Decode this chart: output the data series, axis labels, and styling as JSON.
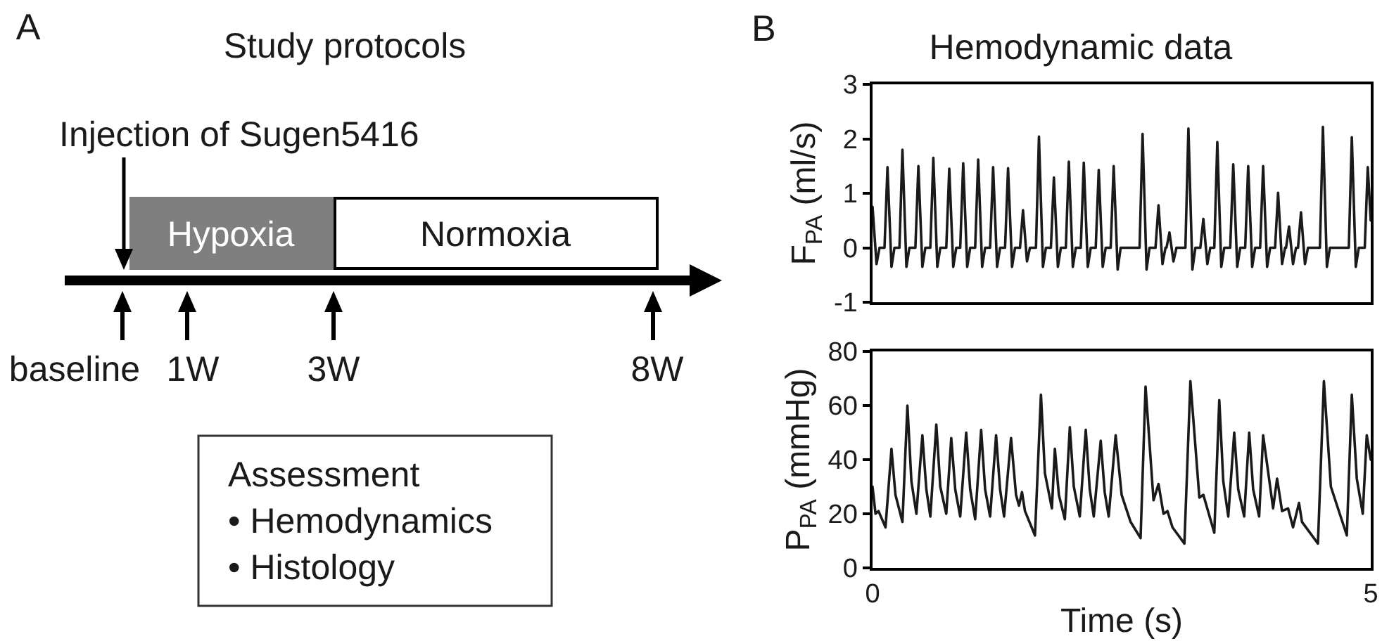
{
  "chart_data": [
    {
      "type": "other",
      "title": "Study protocols",
      "annotations": [
        "A",
        "Injection of Sugen5416",
        "Hypoxia",
        "Normoxia",
        "baseline",
        "1W",
        "3W",
        "8W",
        "Assessment",
        "• Hemodynamics",
        "• Histology"
      ]
    },
    {
      "type": "line",
      "title": "Hemodynamic data",
      "annotations": [
        "B"
      ],
      "ylabel": "F$_{PA}$ (ml/s)",
      "color": "#1a1a1a",
      "xlim": [
        0,
        5
      ],
      "ylim": [
        -1,
        3
      ],
      "yticks": [
        -1,
        0,
        1,
        2,
        3
      ],
      "tick_labels": "y",
      "x": [
        0,
        0.04,
        0.07,
        0.12,
        0.15,
        0.19,
        0.22,
        0.27,
        0.3,
        0.34,
        0.37,
        0.43,
        0.46,
        0.5,
        0.53,
        0.58,
        0.61,
        0.65,
        0.68,
        0.74,
        0.77,
        0.81,
        0.84,
        0.88,
        0.91,
        0.95,
        0.98,
        1.03,
        1.06,
        1.1,
        1.13,
        1.18,
        1.21,
        1.25,
        1.28,
        1.33,
        1.36,
        1.4,
        1.43,
        1.48,
        1.51,
        1.55,
        1.58,
        1.64,
        1.67,
        1.71,
        1.74,
        1.79,
        1.82,
        1.86,
        1.89,
        1.94,
        1.97,
        2.01,
        2.04,
        2.09,
        2.12,
        2.16,
        2.19,
        2.24,
        2.27,
        2.31,
        2.34,
        2.39,
        2.42,
        2.46,
        2.49,
        2.68,
        2.71,
        2.75,
        2.78,
        2.84,
        2.87,
        2.91,
        2.94,
        2.95,
        2.98,
        3.02,
        3.05,
        3.14,
        3.17,
        3.21,
        3.24,
        3.29,
        3.32,
        3.36,
        3.39,
        3.43,
        3.46,
        3.5,
        3.53,
        3.59,
        3.62,
        3.66,
        3.69,
        3.74,
        3.77,
        3.81,
        3.84,
        3.89,
        3.92,
        3.96,
        3.99,
        4.04,
        4.07,
        4.11,
        4.14,
        4.15,
        4.18,
        4.22,
        4.25,
        4.27,
        4.3,
        4.34,
        4.37,
        4.49,
        4.52,
        4.56,
        4.59,
        4.78,
        4.81,
        4.85,
        4.88,
        4.94,
        4.97,
        5
      ],
      "values": [
        0.75,
        -0.3,
        0,
        0,
        1.48,
        -0.35,
        0,
        0,
        1.8,
        -0.35,
        0,
        0,
        1.5,
        -0.35,
        0,
        0,
        1.65,
        -0.35,
        0,
        0,
        1.45,
        -0.35,
        0,
        0,
        1.55,
        -0.35,
        0,
        0,
        1.62,
        -0.35,
        0,
        0,
        1.48,
        -0.35,
        0,
        0,
        1.46,
        -0.35,
        0,
        0,
        0.69,
        -0.25,
        0,
        0,
        2.04,
        -0.35,
        0,
        0,
        1.29,
        -0.35,
        0,
        0,
        1.58,
        -0.35,
        0,
        0,
        1.56,
        -0.35,
        0,
        0,
        1.43,
        -0.35,
        0,
        0,
        1.5,
        -0.4,
        0,
        0,
        2.09,
        -0.4,
        0,
        0,
        0.78,
        -0.3,
        0,
        0,
        0.28,
        -0.25,
        0,
        0,
        2.19,
        -0.4,
        0,
        0,
        0.53,
        -0.3,
        0,
        0,
        1.94,
        -0.35,
        0,
        0,
        1.53,
        -0.35,
        0,
        0,
        1.5,
        -0.35,
        0,
        0,
        1.5,
        -0.35,
        0,
        0,
        1.01,
        -0.3,
        0,
        0,
        0.39,
        -0.3,
        0,
        0,
        0.65,
        -0.3,
        0,
        0,
        2.22,
        -0.35,
        0,
        0,
        2.03,
        -0.35,
        0,
        0,
        1.48,
        0.5
      ]
    },
    {
      "type": "line",
      "xlabel": "Time (s)",
      "ylabel": "P$_{PA}$ (mmHg)",
      "color": "#1a1a1a",
      "xlim": [
        0,
        5
      ],
      "xticks": [
        0,
        5
      ],
      "ylim": [
        0,
        80
      ],
      "yticks": [
        0,
        20,
        40,
        60,
        80
      ],
      "x": [
        0,
        0.03,
        0.06,
        0.13,
        0.19,
        0.23,
        0.3,
        0.35,
        0.39,
        0.44,
        0.5,
        0.54,
        0.58,
        0.64,
        0.68,
        0.74,
        0.79,
        0.83,
        0.88,
        0.94,
        0.98,
        1.03,
        1.09,
        1.13,
        1.18,
        1.24,
        1.28,
        1.32,
        1.39,
        1.44,
        1.47,
        1.5,
        1.53,
        1.63,
        1.69,
        1.73,
        1.8,
        1.83,
        1.87,
        1.93,
        1.98,
        2.02,
        2.08,
        2.14,
        2.18,
        2.22,
        2.29,
        2.33,
        2.37,
        2.44,
        2.5,
        2.59,
        2.69,
        2.74,
        2.82,
        2.87,
        2.92,
        2.96,
        3.01,
        3.13,
        3.19,
        3.28,
        3.32,
        3.43,
        3.48,
        3.52,
        3.57,
        3.63,
        3.67,
        3.73,
        3.78,
        3.82,
        3.88,
        3.92,
        4.02,
        4.06,
        4.11,
        4.17,
        4.22,
        4.28,
        4.31,
        4.47,
        4.53,
        4.6,
        4.76,
        4.81,
        4.86,
        4.92,
        4.96,
        5
      ],
      "values": [
        30,
        20,
        21,
        15,
        44,
        27,
        17,
        60,
        32,
        20,
        49,
        29,
        19,
        53,
        30,
        20,
        48,
        29,
        19,
        50,
        29,
        18,
        51,
        29,
        19,
        49,
        29,
        19,
        48,
        27,
        23,
        28,
        21,
        12,
        64,
        35,
        22,
        44,
        27,
        18,
        52,
        30,
        19,
        51,
        29,
        19,
        47,
        28,
        19,
        49,
        27,
        17,
        11,
        67,
        25,
        31,
        20,
        21,
        15,
        9,
        69,
        26,
        27,
        13,
        62,
        32,
        19,
        50,
        29,
        19,
        50,
        29,
        19,
        49,
        22,
        33,
        21,
        22,
        15,
        24,
        17,
        9,
        69,
        30,
        12,
        64,
        33,
        20,
        49,
        40
      ]
    }
  ]
}
